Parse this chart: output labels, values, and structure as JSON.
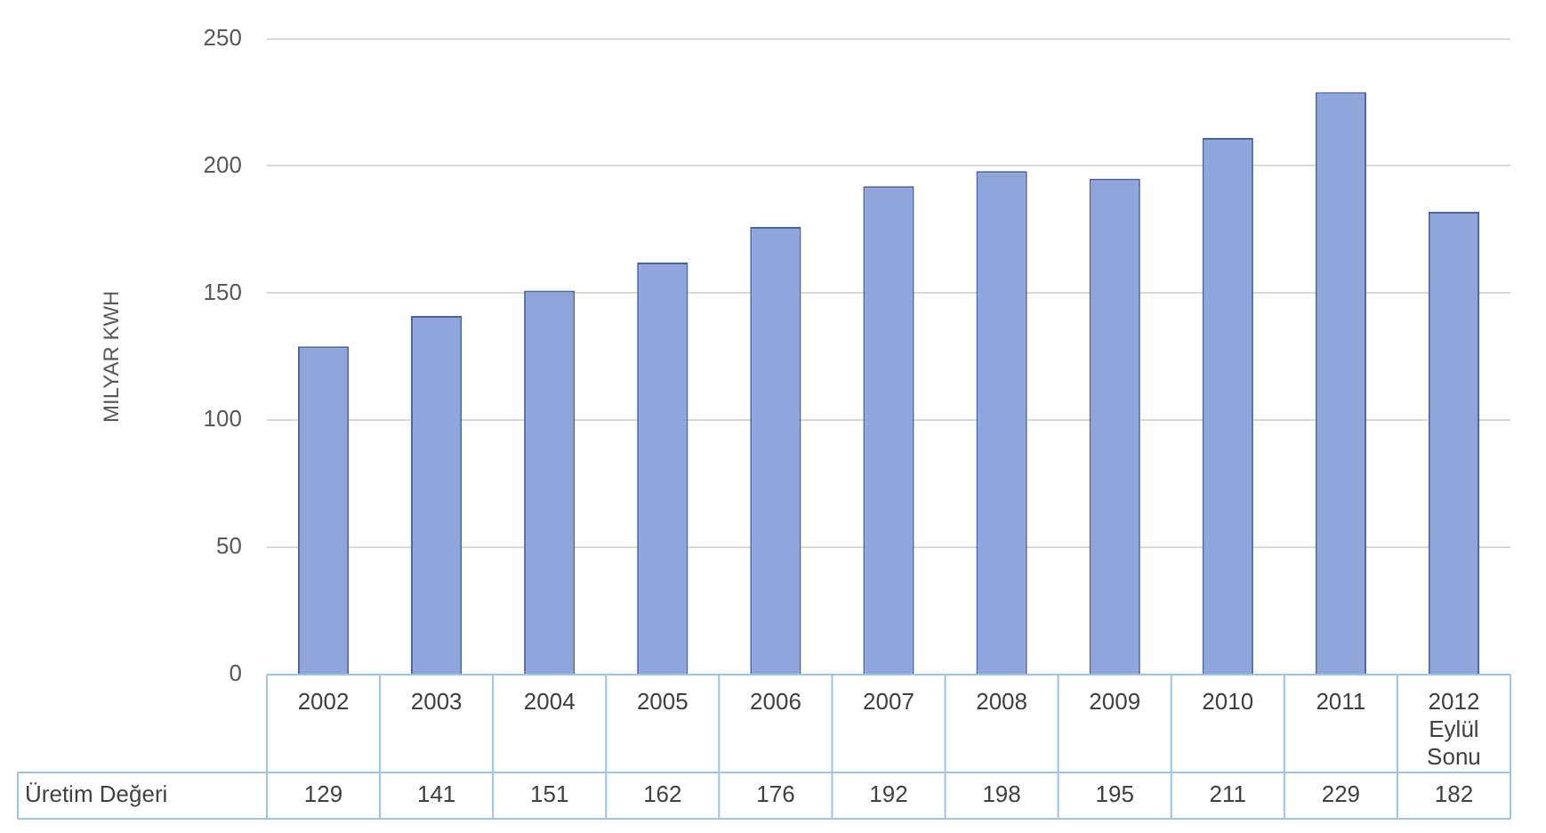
{
  "chart_data": {
    "type": "bar",
    "ylabel": "MILYAR KWH",
    "categories": [
      "2002",
      "2003",
      "2004",
      "2005",
      "2006",
      "2007",
      "2008",
      "2009",
      "2010",
      "2011",
      "2012 Eylül Sonu"
    ],
    "series": [
      {
        "name": "Üretim Değeri",
        "color": "#8fa5dc",
        "values": [
          129,
          141,
          151,
          162,
          176,
          192,
          198,
          195,
          211,
          229,
          182
        ]
      }
    ],
    "ylim": [
      0,
      250
    ],
    "yticks": [
      0,
      50,
      100,
      150,
      200,
      250
    ],
    "grid": "y",
    "legend": false,
    "data_labels": true
  }
}
